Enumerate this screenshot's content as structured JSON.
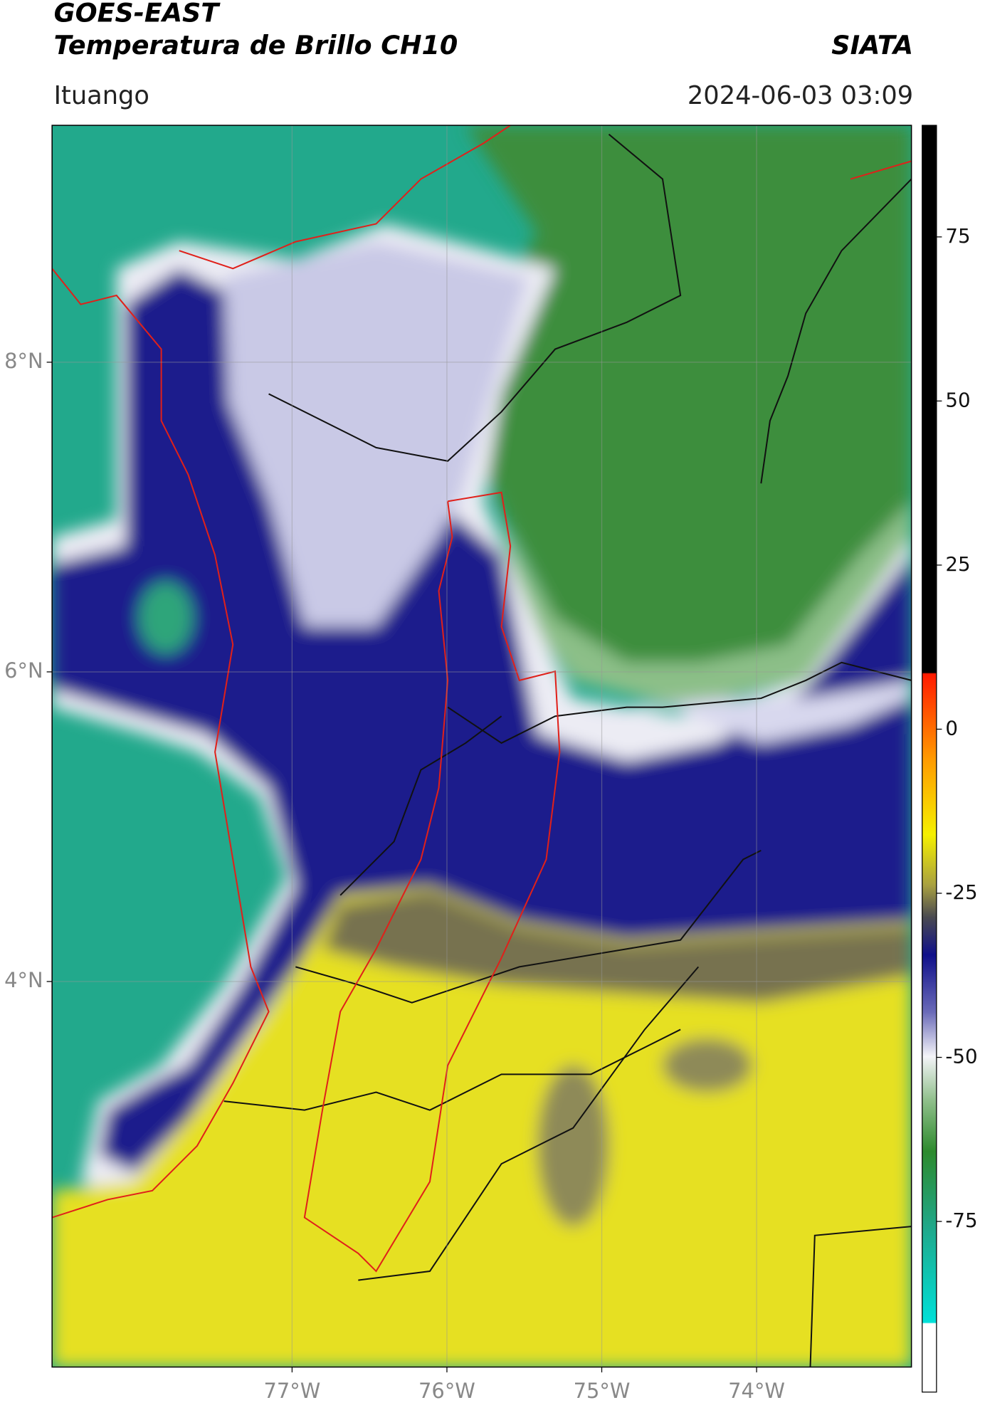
{
  "header": {
    "title": "GOES-EAST",
    "subtitle": "Temperatura de Brillo CH10",
    "source": "SIATA",
    "location": "Ituango",
    "datetime": "2024-06-03 03:09"
  },
  "map": {
    "lon_range": [
      -78.55,
      -73.0
    ],
    "lat_range": [
      1.51,
      9.53
    ],
    "lon_ticks": [
      {
        "value": -77,
        "label": "77°W"
      },
      {
        "value": -76,
        "label": "76°W"
      },
      {
        "value": -75,
        "label": "75°W"
      },
      {
        "value": -74,
        "label": "74°W"
      }
    ],
    "lat_ticks": [
      {
        "value": 4,
        "label": "4°N"
      },
      {
        "value": 6,
        "label": "6°N"
      },
      {
        "value": 8,
        "label": "8°N"
      }
    ]
  },
  "colorbar": {
    "range": [
      -101,
      92
    ],
    "ticks": [
      -75,
      -50,
      -25,
      0,
      25,
      50,
      75
    ]
  }
}
